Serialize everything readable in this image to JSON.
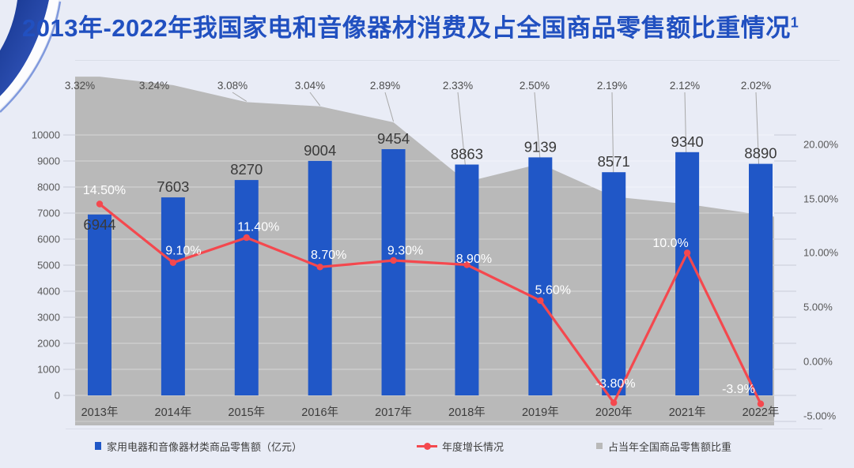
{
  "header": {
    "title": "2013年-2022年我国家电和音像器材消费及占全国商品零售额比重情况",
    "superscript": "1"
  },
  "chart_data": {
    "type": "combo",
    "title": "2013年-2022年我国家电和音像器材消费及占全国商品零售额比重情况",
    "categories": [
      "2013年",
      "2014年",
      "2015年",
      "2016年",
      "2017年",
      "2018年",
      "2019年",
      "2020年",
      "2021年",
      "2022年"
    ],
    "series": [
      {
        "name": "家用电器和音像器材类商品零售额（亿元）",
        "type": "bar",
        "axis": "left",
        "values": [
          6944,
          7603,
          8270,
          9004,
          9454,
          8863,
          9139,
          8571,
          9340,
          8890
        ],
        "labels": [
          "6944",
          "7603",
          "8270",
          "9004",
          "9454",
          "8863",
          "9139",
          "8571",
          "9340",
          "8890"
        ]
      },
      {
        "name": "年度增长情况",
        "type": "line",
        "axis": "right",
        "values": [
          14.5,
          9.1,
          11.4,
          8.7,
          9.3,
          8.9,
          5.6,
          -3.8,
          10.0,
          -3.9
        ],
        "labels": [
          "14.50%",
          "9.10%",
          "11.40%",
          "8.70%",
          "9.30%",
          "8.90%",
          "5.60%",
          "-3.80%",
          "10.0%",
          "-3.9%"
        ]
      },
      {
        "name": "占当年全国商品零售额比重",
        "type": "area",
        "axis": "hidden",
        "values": [
          3.32,
          3.24,
          3.08,
          3.04,
          2.89,
          2.33,
          2.5,
          2.19,
          2.12,
          2.02
        ],
        "labels": [
          "3.32%",
          "3.24%",
          "3.08%",
          "3.04%",
          "2.89%",
          "2.33%",
          "2.50%",
          "2.19%",
          "2.12%",
          "2.02%"
        ]
      }
    ],
    "left_axis": {
      "min": 0,
      "max": 10000,
      "ticks": [
        "0",
        "1000",
        "2000",
        "3000",
        "4000",
        "5000",
        "6000",
        "7000",
        "8000",
        "9000",
        "10000"
      ]
    },
    "right_axis": {
      "min": -5,
      "max": 20,
      "ticks": [
        "20.00%",
        "15.00%",
        "10.00%",
        "5.00%",
        "0.00%",
        "-5.00%"
      ]
    },
    "legend_position": "bottom",
    "grid": true,
    "colors": {
      "bar": "#2057c7",
      "line": "#f4484e",
      "area": "#b9b9b9",
      "title": "#2150c0",
      "background": "#e9ecf6",
      "gridline": "rgba(255,255,255,0.42)"
    }
  }
}
